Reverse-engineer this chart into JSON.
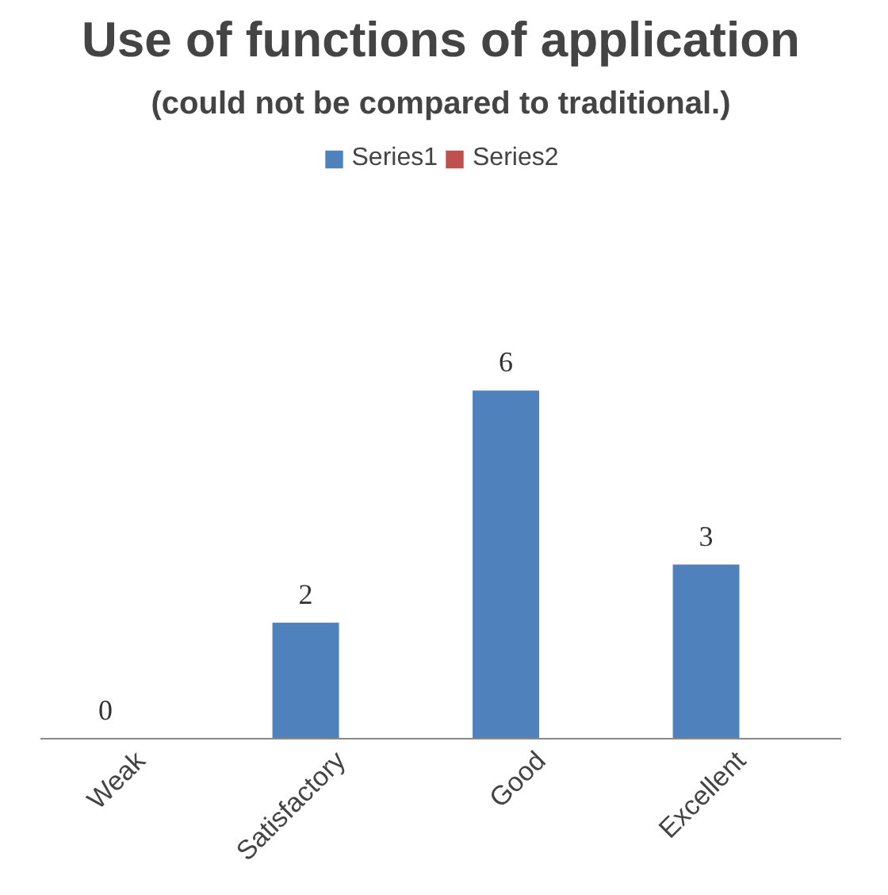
{
  "chart_data": {
    "type": "bar",
    "title": "Use of functions of application",
    "subtitle": "(could not be compared to traditional.)",
    "categories": [
      "Weak",
      "Satisfactory",
      "Good",
      "Excellent"
    ],
    "series": [
      {
        "name": "Series1",
        "color": "#4f81bd",
        "values": [
          0,
          2,
          6,
          3
        ]
      },
      {
        "name": "Series2",
        "color": "#c0504d",
        "values": [
          null,
          null,
          null,
          null
        ]
      }
    ],
    "data_labels": true,
    "legend": "top",
    "grid": false
  }
}
